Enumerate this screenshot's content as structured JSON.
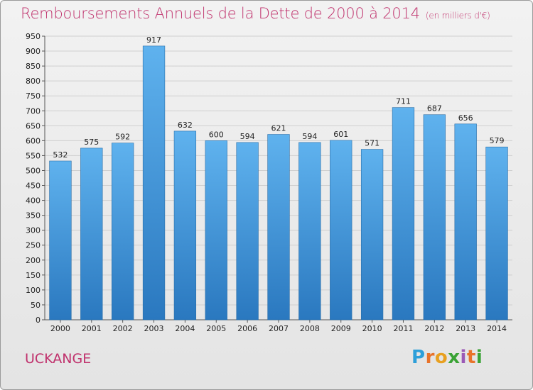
{
  "title": "Remboursements Annuels de la Dette de 2000 à 2014",
  "title_unit": "(en milliers d'€)",
  "city": "UCKANGE",
  "logo": {
    "letters": [
      "P",
      "r",
      "o",
      "x",
      "i",
      "t",
      "i"
    ],
    "colors": [
      "#2d9fd9",
      "#e8732a",
      "#e8a020",
      "#3aa335",
      "#9b59b6",
      "#e8732a",
      "#3aa335"
    ]
  },
  "colors": {
    "title": "#c0326d",
    "bar_top": "#5fb2ee",
    "bar_bottom": "#2a78bf",
    "grid": "#cfcfcf"
  },
  "chart_data": {
    "type": "bar",
    "title": "Remboursements Annuels de la Dette de 2000 à 2014",
    "categories": [
      "2000",
      "2001",
      "2002",
      "2003",
      "2004",
      "2005",
      "2006",
      "2007",
      "2008",
      "2009",
      "2010",
      "2011",
      "2012",
      "2013",
      "2014"
    ],
    "values": [
      532,
      575,
      592,
      917,
      632,
      600,
      594,
      621,
      594,
      601,
      571,
      711,
      687,
      656,
      579
    ],
    "ylim": [
      0,
      950
    ],
    "yticks": [
      0,
      50,
      100,
      150,
      200,
      250,
      300,
      350,
      400,
      450,
      500,
      550,
      600,
      650,
      700,
      750,
      800,
      850,
      900,
      950
    ],
    "grid": true,
    "legend": "none"
  }
}
